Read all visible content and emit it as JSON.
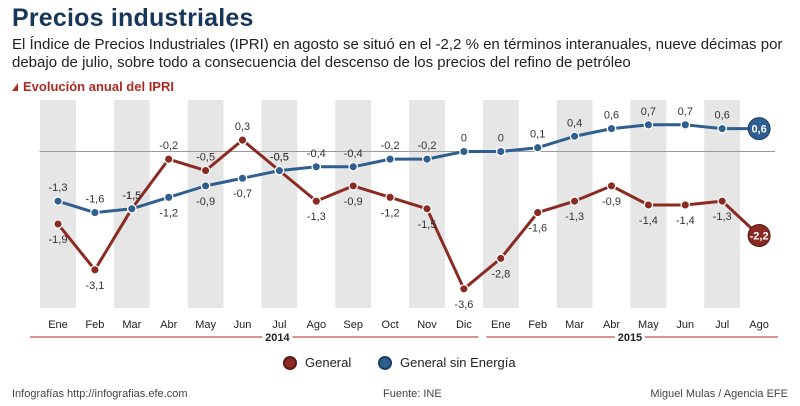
{
  "header": {
    "title": "Precios industriales",
    "subtitle": "El Índice de Precios Industriales (IPRI) en agosto se situó en el -2,2 % en términos interanuales, nueve décimas por debajo de julio, sobre todo a consecuencia del descenso de los precios del refino de petróleo",
    "section_label": "Evolución anual del IPRI"
  },
  "colors": {
    "general": "#8b2a22",
    "sin_energia": "#2f5f8f",
    "band": "#e6e6e6",
    "title": "#16365a",
    "accent": "#b02a22"
  },
  "chart_data": {
    "type": "line",
    "title": "Evolución anual del IPRI",
    "categories": [
      "Ene",
      "Feb",
      "Mar",
      "Abr",
      "May",
      "Jun",
      "Jul",
      "Ago",
      "Sep",
      "Oct",
      "Nov",
      "Dic",
      "Ene",
      "Feb",
      "Mar",
      "Abr",
      "May",
      "Jun",
      "Jul",
      "Ago"
    ],
    "category_labels": [
      "Ene",
      "Feb",
      "Mar",
      "Abr",
      "May",
      "Jun",
      "Jul",
      "Ago",
      "Sep",
      "Oct",
      "Nov",
      "Dic",
      "Ene",
      "Feb",
      "Mar",
      "Abr",
      "May",
      "Jun",
      "Jul",
      "Ago"
    ],
    "years": [
      {
        "label": "2014",
        "start": 0,
        "end": 11
      },
      {
        "label": "2015",
        "start": 12,
        "end": 19
      }
    ],
    "series": [
      {
        "name": "General",
        "values": [
          -1.9,
          -3.1,
          -1.5,
          -0.2,
          -0.5,
          0.3,
          -0.5,
          -1.3,
          -0.9,
          -1.2,
          -1.5,
          -3.6,
          -2.8,
          -1.6,
          -1.3,
          -0.9,
          -1.4,
          -1.4,
          -1.3,
          -2.2
        ],
        "labels": [
          "-1,9",
          "-3,1",
          "-1,5",
          "-0,2",
          "-0,5",
          "0,3",
          "-0,5",
          "-1,3",
          "-0,9",
          "-1,2",
          "-1,5",
          "-3,6",
          "-2,8",
          "-1,6",
          "-1,3",
          "-0,9",
          "-1,4",
          "-1,4",
          "-1,3",
          "-2,2"
        ]
      },
      {
        "name": "General sin Energía",
        "values": [
          -1.3,
          -1.6,
          -1.5,
          -1.2,
          -0.9,
          -0.7,
          -0.5,
          -0.4,
          -0.4,
          -0.2,
          -0.2,
          0,
          0,
          0.1,
          0.4,
          0.6,
          0.7,
          0.7,
          0.6,
          0.6
        ],
        "labels": [
          "-1,3",
          "-1,6",
          "-1,5",
          "-1,2",
          "-0,9",
          "-0,7",
          "-0,5",
          "-0,4",
          "-0,4",
          "-0,2",
          "-0,2",
          "0",
          "0",
          "0,1",
          "0,4",
          "0,6",
          "0,7",
          "0,7",
          "0,6",
          "0,6"
        ]
      }
    ],
    "ylim": [
      -4.1,
      1.35
    ],
    "xlabel": "",
    "ylabel": "",
    "zero_line": true,
    "legend_position": "bottom"
  },
  "legend": {
    "general": "General",
    "sin_energia": "General sin Energía"
  },
  "footer": {
    "left": "Infografías http://infografias.efe.com",
    "center": "Fuente: INE",
    "right": "Miguel Mulas / Agencia EFE"
  }
}
